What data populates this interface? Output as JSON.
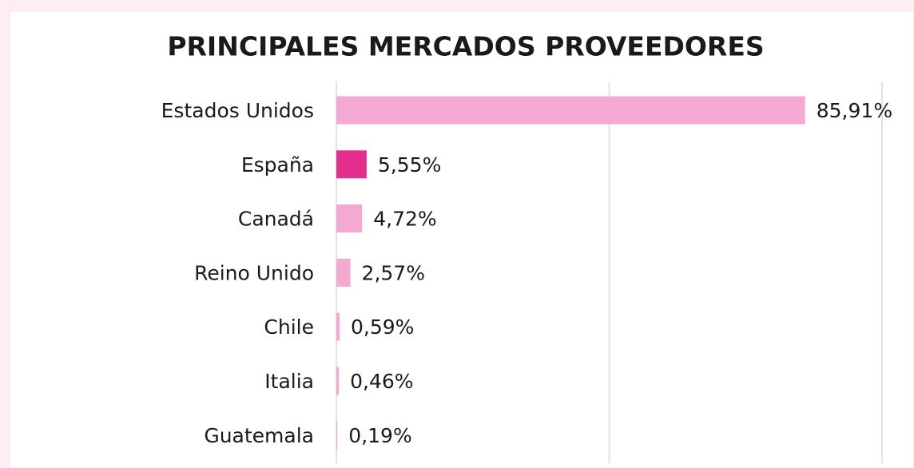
{
  "chart_data": {
    "type": "hbar",
    "title": "PRINCIPALES MERCADOS PROVEEDORES",
    "categories": [
      "Estados Unidos",
      "España",
      "Canadá",
      "Reino Unido",
      "Chile",
      "Italia",
      "Guatemala"
    ],
    "values": [
      85.91,
      5.55,
      4.72,
      2.57,
      0.59,
      0.46,
      0.19
    ],
    "value_labels": [
      "85,91%",
      "5,55%",
      "4,72%",
      "2,57%",
      "0,59%",
      "0,46%",
      "0,19%"
    ],
    "colors": [
      "#f3a9d2",
      "#e3308f",
      "#f3a9d2",
      "#f3a9d2",
      "#f3a9d2",
      "#f3a9d2",
      "#f3a9d2"
    ],
    "xlim": [
      0,
      100
    ],
    "xticks": [
      0,
      50,
      100
    ],
    "grid": true
  }
}
